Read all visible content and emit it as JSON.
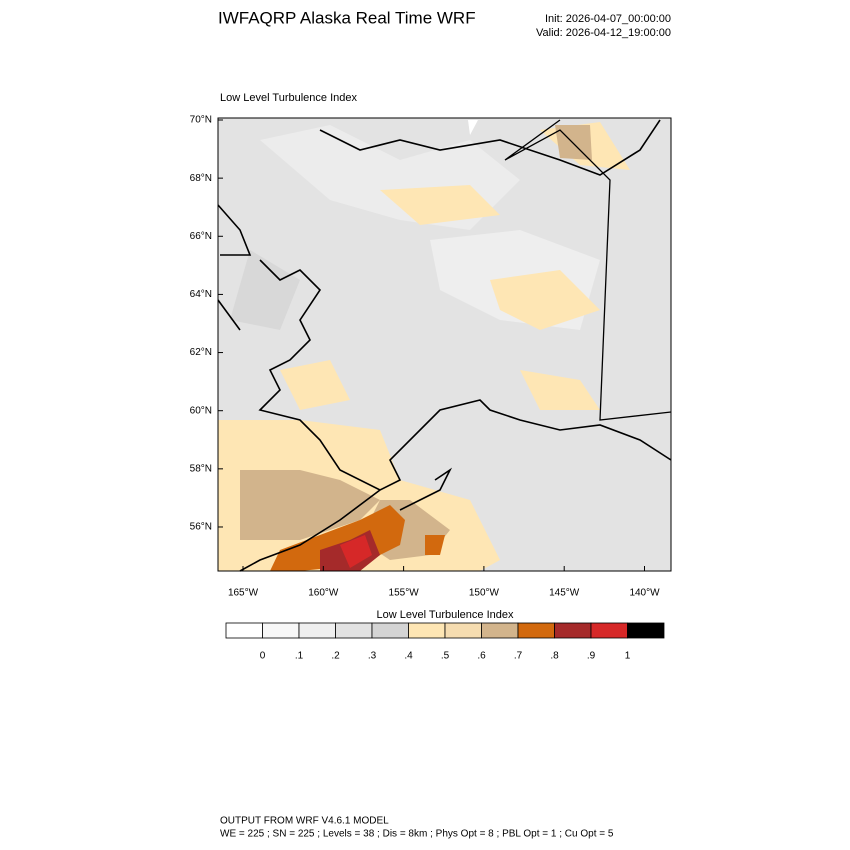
{
  "header": {
    "title": "IWFAQRP Alaska Real Time WRF",
    "init": "Init: 2026-04-07_00:00:00",
    "valid": "Valid: 2026-04-12_19:00:00"
  },
  "map": {
    "subtitle": "Low Level Turbulence Index",
    "lat_ticks": [
      {
        "value": 70,
        "label": "70°N"
      },
      {
        "value": 68,
        "label": "68°N"
      },
      {
        "value": 66,
        "label": "66°N"
      },
      {
        "value": 64,
        "label": "64°N"
      },
      {
        "value": 62,
        "label": "62°N"
      },
      {
        "value": 60,
        "label": "60°N"
      },
      {
        "value": 58,
        "label": "58°N"
      },
      {
        "value": 56,
        "label": "56°N"
      }
    ],
    "lon_ticks": [
      {
        "value": -165,
        "label": "165°W"
      },
      {
        "value": -160,
        "label": "160°W"
      },
      {
        "value": -155,
        "label": "155°W"
      },
      {
        "value": -150,
        "label": "150°W"
      },
      {
        "value": -145,
        "label": "145°W"
      },
      {
        "value": -140,
        "label": "140°W"
      }
    ]
  },
  "colorbar": {
    "title": "Low Level Turbulence Index",
    "colors": [
      "#ffffff",
      "#f7f7f7",
      "#efefef",
      "#e2e2e2",
      "#d4d4d4",
      "#fee6b4",
      "#f5dcb0",
      "#d2b48c",
      "#d2690e",
      "#a52a2a",
      "#d62828",
      "#000000"
    ],
    "labels": [
      {
        "value": 0,
        "label": "0"
      },
      {
        "value": 0.1,
        "label": ".1"
      },
      {
        "value": 0.2,
        "label": ".2"
      },
      {
        "value": 0.3,
        "label": ".3"
      },
      {
        "value": 0.4,
        "label": ".4"
      },
      {
        "value": 0.5,
        "label": ".5"
      },
      {
        "value": 0.6,
        "label": ".6"
      },
      {
        "value": 0.7,
        "label": ".7"
      },
      {
        "value": 0.8,
        "label": ".8"
      },
      {
        "value": 0.9,
        "label": ".9"
      },
      {
        "value": 1,
        "label": "1"
      }
    ]
  },
  "footer": {
    "line1": "OUTPUT FROM WRF V4.6.1 MODEL",
    "line2": "WE = 225 ; SN = 225 ; Levels = 38 ; Dis = 8km ; Phys Opt = 8 ; PBL Opt = 1 ; Cu Opt = 5"
  }
}
